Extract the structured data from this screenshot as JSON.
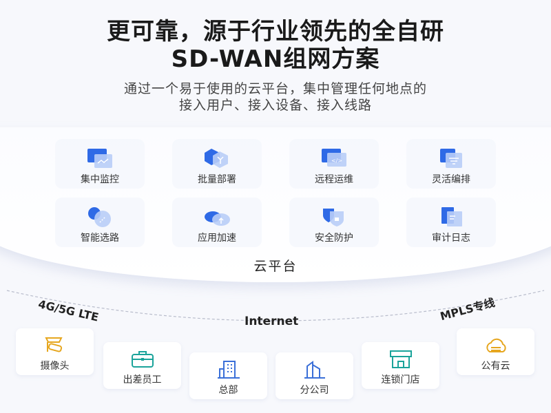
{
  "header": {
    "title_line1": "更可靠，源于行业领先的全自研",
    "title_line2": "SD-WAN组网方案",
    "subtitle_line1": "通过一个易于使用的云平台，集中管理任何地点的",
    "subtitle_line2": "接入用户、接入设备、接入线路"
  },
  "platform": {
    "label": "云平台",
    "features": [
      {
        "label": "集中监控",
        "icon": "monitor-chart-icon"
      },
      {
        "label": "批量部署",
        "icon": "deploy-hexagon-icon"
      },
      {
        "label": "远程运维",
        "icon": "remote-code-icon"
      },
      {
        "label": "灵活编排",
        "icon": "filter-layers-icon"
      },
      {
        "label": "智能选路",
        "icon": "route-icon"
      },
      {
        "label": "应用加速",
        "icon": "cloud-upload-icon"
      },
      {
        "label": "安全防护",
        "icon": "shield-lock-icon"
      },
      {
        "label": "审计日志",
        "icon": "log-document-icon"
      }
    ]
  },
  "links": {
    "left": "4G/5G LTE",
    "center": "Internet",
    "right": "MPLS专线"
  },
  "endpoints": [
    {
      "label": "摄像头",
      "icon": "camera-icon",
      "color": "#e6a61e"
    },
    {
      "label": "出差员工",
      "icon": "briefcase-icon",
      "color": "#1aa39a"
    },
    {
      "label": "总部",
      "icon": "building-icon",
      "color": "#3a6fd8"
    },
    {
      "label": "分公司",
      "icon": "branch-building-icon",
      "color": "#3a6fd8"
    },
    {
      "label": "连锁门店",
      "icon": "store-icon",
      "color": "#1aa39a"
    },
    {
      "label": "公有云",
      "icon": "public-cloud-icon",
      "color": "#e6a61e"
    }
  ],
  "colors": {
    "accent": "#2f6ae6",
    "accent_light": "#a9c2f5"
  }
}
